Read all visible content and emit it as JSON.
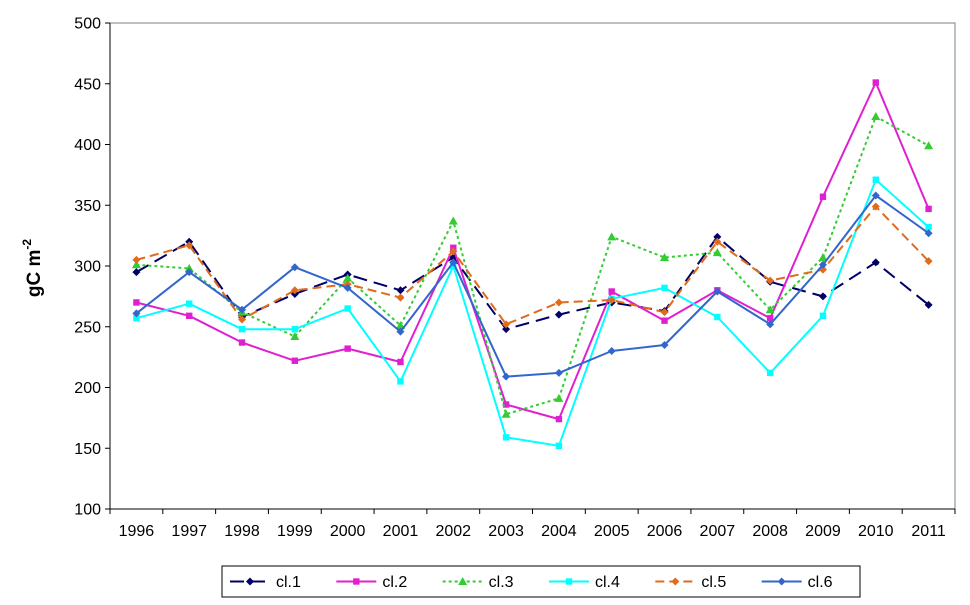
{
  "chart_data": {
    "type": "line",
    "title": "",
    "xlabel": "",
    "ylabel": "gC m",
    "ylabel_sup": "-2",
    "categories": [
      "1996",
      "1997",
      "1998",
      "1999",
      "2000",
      "2001",
      "2002",
      "2003",
      "2004",
      "2005",
      "2006",
      "2007",
      "2008",
      "2009",
      "2010",
      "2011"
    ],
    "ylim": [
      100,
      500
    ],
    "yticks": [
      100,
      150,
      200,
      250,
      300,
      350,
      400,
      450,
      500
    ],
    "grid": false,
    "legend_position": "bottom",
    "series": [
      {
        "name": "cl.1",
        "color": "#000066",
        "dash": "long-dash",
        "marker": "diamond",
        "values": [
          295,
          320,
          258,
          277,
          293,
          280,
          307,
          248,
          260,
          270,
          263,
          324,
          287,
          275,
          303,
          268
        ]
      },
      {
        "name": "cl.2",
        "color": "#E020D0",
        "dash": "solid",
        "marker": "square",
        "values": [
          270,
          259,
          237,
          222,
          232,
          221,
          315,
          186,
          174,
          279,
          255,
          280,
          257,
          357,
          451,
          347
        ]
      },
      {
        "name": "cl.3",
        "color": "#33CC33",
        "dash": "dotted",
        "marker": "triangle",
        "values": [
          301,
          298,
          262,
          242,
          290,
          251,
          337,
          178,
          191,
          324,
          307,
          311,
          264,
          307,
          423,
          399
        ]
      },
      {
        "name": "cl.4",
        "color": "#00FFFF",
        "dash": "solid",
        "marker": "square",
        "values": [
          257,
          269,
          248,
          248,
          265,
          205,
          300,
          159,
          152,
          273,
          282,
          258,
          212,
          259,
          371,
          332
        ]
      },
      {
        "name": "cl.5",
        "color": "#E06B1C",
        "dash": "dash",
        "marker": "diamond",
        "values": [
          305,
          317,
          256,
          280,
          285,
          274,
          312,
          252,
          270,
          272,
          262,
          320,
          288,
          297,
          349,
          304
        ]
      },
      {
        "name": "cl.6",
        "color": "#3366CC",
        "dash": "solid",
        "marker": "diamond",
        "values": [
          261,
          295,
          264,
          299,
          282,
          246,
          303,
          209,
          212,
          230,
          235,
          279,
          252,
          301,
          358,
          327
        ]
      }
    ]
  }
}
